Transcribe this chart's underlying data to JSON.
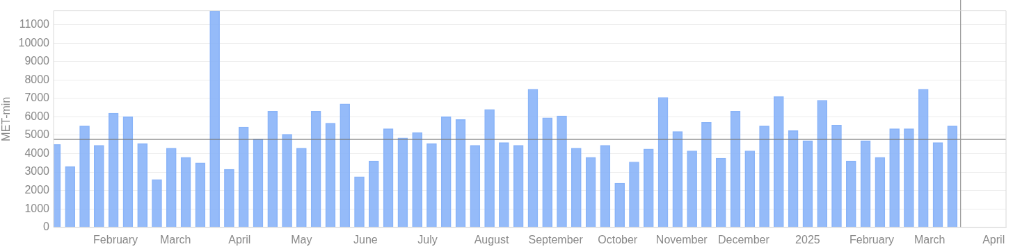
{
  "chart_data": {
    "type": "bar",
    "ylabel": "MET-min",
    "x": [
      "2024-01-03",
      "2024-01-10",
      "2024-01-17",
      "2024-01-24",
      "2024-01-31",
      "2024-02-07",
      "2024-02-14",
      "2024-02-21",
      "2024-02-28",
      "2024-03-06",
      "2024-03-13",
      "2024-03-20",
      "2024-03-27",
      "2024-04-03",
      "2024-04-10",
      "2024-04-17",
      "2024-04-24",
      "2024-05-01",
      "2024-05-08",
      "2024-05-15",
      "2024-05-22",
      "2024-05-29",
      "2024-06-05",
      "2024-06-12",
      "2024-06-19",
      "2024-06-26",
      "2024-07-03",
      "2024-07-10",
      "2024-07-17",
      "2024-07-24",
      "2024-07-31",
      "2024-08-07",
      "2024-08-14",
      "2024-08-21",
      "2024-08-28",
      "2024-09-04",
      "2024-09-11",
      "2024-09-18",
      "2024-09-25",
      "2024-10-02",
      "2024-10-09",
      "2024-10-16",
      "2024-10-23",
      "2024-10-30",
      "2024-11-06",
      "2024-11-13",
      "2024-11-20",
      "2024-11-27",
      "2024-12-04",
      "2024-12-11",
      "2024-12-18",
      "2024-12-25",
      "2025-01-01",
      "2025-01-08",
      "2025-01-15",
      "2025-01-22",
      "2025-01-29",
      "2025-02-05",
      "2025-02-12",
      "2025-02-19",
      "2025-02-26",
      "2025-03-05",
      "2025-03-12"
    ],
    "values": [
      4500,
      3300,
      5500,
      4450,
      6200,
      6000,
      4550,
      2600,
      4300,
      3800,
      3500,
      11750,
      3150,
      5450,
      4800,
      6300,
      5050,
      4300,
      6300,
      5650,
      6700,
      2750,
      3600,
      5350,
      4850,
      5150,
      4550,
      6000,
      5850,
      4450,
      6400,
      4600,
      4450,
      7500,
      5950,
      6050,
      4300,
      3800,
      4450,
      2400,
      3550,
      4250,
      7050,
      5200,
      4150,
      5700,
      3750,
      6300,
      4150,
      5500,
      7100,
      5250,
      4700,
      6900,
      5550,
      3600,
      4700,
      3800,
      5350,
      5350,
      7500,
      4600,
      5500
    ],
    "color": "#8ab4f8",
    "xlim": [
      "2024-01-02",
      "2025-04-07"
    ],
    "xticks": [
      {
        "value": "2024-02-01",
        "label": "February"
      },
      {
        "value": "2024-03-01",
        "label": "March"
      },
      {
        "value": "2024-04-01",
        "label": "April"
      },
      {
        "value": "2024-05-01",
        "label": "May"
      },
      {
        "value": "2024-06-01",
        "label": "June"
      },
      {
        "value": "2024-07-01",
        "label": "July"
      },
      {
        "value": "2024-08-01",
        "label": "August"
      },
      {
        "value": "2024-09-01",
        "label": "September"
      },
      {
        "value": "2024-10-01",
        "label": "October"
      },
      {
        "value": "2024-11-01",
        "label": "November"
      },
      {
        "value": "2024-12-01",
        "label": "December"
      },
      {
        "value": "2025-01-01",
        "label": "2025"
      },
      {
        "value": "2025-02-01",
        "label": "February"
      },
      {
        "value": "2025-03-01",
        "label": "March"
      },
      {
        "value": "2025-04-01",
        "label": "April"
      }
    ],
    "ylim": [
      0,
      11750
    ],
    "yticks": [
      0,
      1000,
      2000,
      3000,
      4000,
      5000,
      6000,
      7000,
      8000,
      9000,
      10000,
      11000
    ],
    "grid": "y",
    "ref_lines": [
      {
        "axis": "y",
        "value": 4780,
        "color": "#777777"
      },
      {
        "axis": "x",
        "value": "2025-03-16",
        "color": "#999999"
      }
    ]
  }
}
